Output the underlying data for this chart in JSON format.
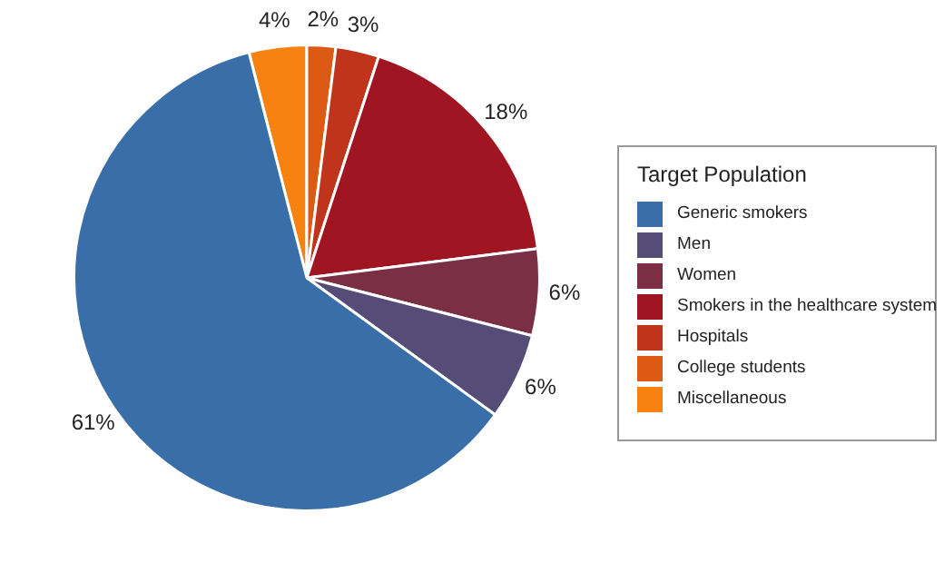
{
  "chart_data": {
    "type": "pie",
    "legend_title": "Target Population",
    "legend": "right",
    "categories": [
      "Generic smokers",
      "Men",
      "Women",
      "Smokers in the healthcare system",
      "Hospitals",
      "College students",
      "Miscellaneous"
    ],
    "values": [
      61,
      6,
      6,
      18,
      3,
      2,
      4
    ],
    "colors": [
      "#3a6ea8",
      "#554c78",
      "#7b2f44",
      "#a01522",
      "#c0341c",
      "#dd5a14",
      "#f8820f"
    ],
    "value_labels": [
      "61%",
      "6%",
      "6%",
      "18%",
      "3%",
      "2%",
      "4%"
    ]
  }
}
